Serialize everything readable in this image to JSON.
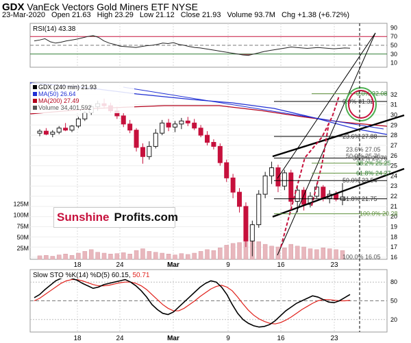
{
  "header": {
    "symbol": "GDX",
    "name": "VanEck Vectors Gold Miners ETF",
    "exchange": "NYSE",
    "date": "23-Mar-2020",
    "open_label": "Open",
    "open": "21.63",
    "high_label": "High",
    "high": "23.29",
    "low_label": "Low",
    "low": "21.12",
    "close_label": "Close",
    "close": "21.93",
    "volume_label": "Volume",
    "volume": "93.7M",
    "chg_label": "Chg",
    "chg": "+1.38 (+6.72%)"
  },
  "watermark": {
    "part1": "Sunshine",
    "part2": "Profits.com"
  },
  "colors": {
    "up": "#1a1a1a",
    "down": "#c6103c",
    "ma50": "#1f2fd4",
    "ma200": "#b3001b",
    "rsi": "#222222",
    "rsi_hi_fill": "#2e7d32",
    "rsi_lo_fill": "#8b1a2b",
    "sto_k": "#000000",
    "sto_d": "#e0201a",
    "volume": "#e8b7bd",
    "fib": "#5c8f3a",
    "circle": "#c6103c",
    "circle_green": "#4caf50"
  },
  "chart_data": [
    {
      "type": "line",
      "name": "rsi_panel",
      "label": "RSI(14) 43.38",
      "yticks": [
        90,
        70,
        50,
        30,
        10
      ],
      "ylim": [
        0,
        100
      ],
      "values": [
        60,
        62,
        65,
        58,
        55,
        57,
        60,
        62,
        64,
        67,
        70,
        72,
        68,
        60,
        55,
        52,
        48,
        47,
        46,
        45,
        47,
        49,
        50,
        52,
        55,
        54,
        56,
        52,
        50,
        47,
        45,
        44,
        42,
        40,
        38,
        36,
        34,
        32,
        30,
        28,
        27,
        30,
        33,
        36,
        38,
        40,
        42,
        44,
        46,
        45,
        44,
        43,
        44,
        45,
        44,
        43,
        42,
        43,
        44,
        43.38
      ],
      "reference_lines": [
        70,
        50,
        30
      ]
    },
    {
      "type": "candlestick",
      "name": "price_panel",
      "legend": [
        {
          "name": "GDX (240 min)",
          "value": "21.93"
        },
        {
          "name": "MA(50)",
          "value": "26.64"
        },
        {
          "name": "MA(200)",
          "value": "27.49"
        },
        {
          "name": "Volume",
          "value": "34,401,592"
        }
      ],
      "ylim": [
        15.8,
        33.2
      ],
      "yticks": [
        32,
        31,
        30,
        29,
        28,
        27,
        26,
        25,
        24,
        23,
        22,
        21,
        20,
        19,
        18,
        17,
        16
      ],
      "volume_ticks": [
        "125M",
        "100M",
        "75M",
        "50M",
        "25M"
      ],
      "volume_max_M": 140,
      "x_ticks": [
        "18",
        "24",
        "Mar",
        "9",
        "16",
        "23"
      ],
      "annotations": [
        "0.0% 31.32",
        "23.6% 27.88",
        "38.2% 25.76",
        "50.0% 23.54",
        "61.8% 21.75",
        "100.0% 20.28",
        "0.0% 32.08",
        "38.2% 25.25",
        "61.8% 24.27",
        "100.0% 16.05",
        "23.6% 27.05",
        "50.0% 25.76"
      ],
      "candles": [
        {
          "o": 28.2,
          "h": 28.6,
          "l": 27.9,
          "c": 28.4
        },
        {
          "o": 28.4,
          "h": 28.7,
          "l": 28.0,
          "c": 28.1
        },
        {
          "o": 28.1,
          "h": 28.5,
          "l": 27.8,
          "c": 28.3
        },
        {
          "o": 28.3,
          "h": 28.9,
          "l": 28.1,
          "c": 28.7
        },
        {
          "o": 28.7,
          "h": 29.2,
          "l": 28.4,
          "c": 28.5
        },
        {
          "o": 28.5,
          "h": 29.0,
          "l": 28.3,
          "c": 28.9
        },
        {
          "o": 28.9,
          "h": 29.8,
          "l": 28.7,
          "c": 29.6
        },
        {
          "o": 29.6,
          "h": 30.4,
          "l": 29.4,
          "c": 30.2
        },
        {
          "o": 30.2,
          "h": 31.0,
          "l": 30.0,
          "c": 30.8
        },
        {
          "o": 30.8,
          "h": 31.4,
          "l": 30.4,
          "c": 31.1
        },
        {
          "o": 31.1,
          "h": 31.6,
          "l": 30.6,
          "c": 30.9
        },
        {
          "o": 30.9,
          "h": 31.2,
          "l": 30.2,
          "c": 30.4
        },
        {
          "o": 30.4,
          "h": 30.8,
          "l": 29.6,
          "c": 29.9
        },
        {
          "o": 29.9,
          "h": 30.2,
          "l": 28.8,
          "c": 29.1
        },
        {
          "o": 29.1,
          "h": 29.5,
          "l": 28.2,
          "c": 28.5
        },
        {
          "o": 28.5,
          "h": 28.7,
          "l": 26.4,
          "c": 26.8
        },
        {
          "o": 26.8,
          "h": 27.2,
          "l": 25.2,
          "c": 25.9
        },
        {
          "o": 25.9,
          "h": 27.4,
          "l": 25.6,
          "c": 26.9
        },
        {
          "o": 26.9,
          "h": 28.6,
          "l": 26.7,
          "c": 28.2
        },
        {
          "o": 28.2,
          "h": 29.5,
          "l": 28.0,
          "c": 29.2
        },
        {
          "o": 29.2,
          "h": 29.6,
          "l": 28.4,
          "c": 28.8
        },
        {
          "o": 28.8,
          "h": 29.4,
          "l": 28.3,
          "c": 29.1
        },
        {
          "o": 29.1,
          "h": 29.7,
          "l": 28.6,
          "c": 29.4
        },
        {
          "o": 29.4,
          "h": 29.8,
          "l": 28.9,
          "c": 29.2
        },
        {
          "o": 29.2,
          "h": 29.6,
          "l": 28.5,
          "c": 28.7
        },
        {
          "o": 28.7,
          "h": 29.0,
          "l": 27.8,
          "c": 28.0
        },
        {
          "o": 28.0,
          "h": 28.4,
          "l": 27.0,
          "c": 27.3
        },
        {
          "o": 27.3,
          "h": 27.6,
          "l": 26.6,
          "c": 26.9
        },
        {
          "o": 26.9,
          "h": 27.2,
          "l": 25.0,
          "c": 25.3
        },
        {
          "o": 25.3,
          "h": 25.6,
          "l": 23.4,
          "c": 23.8
        },
        {
          "o": 23.8,
          "h": 24.2,
          "l": 21.8,
          "c": 22.4
        },
        {
          "o": 22.4,
          "h": 22.8,
          "l": 20.4,
          "c": 21.0
        },
        {
          "o": 21.0,
          "h": 21.4,
          "l": 17.0,
          "c": 17.6
        },
        {
          "o": 17.6,
          "h": 19.6,
          "l": 16.1,
          "c": 19.2
        },
        {
          "o": 19.2,
          "h": 22.6,
          "l": 18.9,
          "c": 22.2
        },
        {
          "o": 22.2,
          "h": 24.4,
          "l": 21.8,
          "c": 24.0
        },
        {
          "o": 24.0,
          "h": 25.4,
          "l": 23.2,
          "c": 24.8
        },
        {
          "o": 24.8,
          "h": 25.1,
          "l": 22.4,
          "c": 23.0
        },
        {
          "o": 23.0,
          "h": 24.6,
          "l": 22.6,
          "c": 24.3
        },
        {
          "o": 24.3,
          "h": 24.6,
          "l": 21.0,
          "c": 21.5
        },
        {
          "o": 21.5,
          "h": 23.0,
          "l": 20.4,
          "c": 22.6
        },
        {
          "o": 22.6,
          "h": 22.9,
          "l": 20.6,
          "c": 21.2
        },
        {
          "o": 21.2,
          "h": 22.4,
          "l": 20.9,
          "c": 22.0
        },
        {
          "o": 22.0,
          "h": 23.3,
          "l": 21.8,
          "c": 22.9
        },
        {
          "o": 22.9,
          "h": 23.1,
          "l": 21.5,
          "c": 21.8
        },
        {
          "o": 21.8,
          "h": 22.6,
          "l": 21.3,
          "c": 22.2
        },
        {
          "o": 22.2,
          "h": 22.5,
          "l": 21.5,
          "c": 21.7
        },
        {
          "o": 21.63,
          "h": 23.29,
          "l": 21.12,
          "c": 21.93
        }
      ]
    },
    {
      "type": "line",
      "name": "stochastic_panel",
      "label_prefix": "Slow STO %K(14) %D(5) ",
      "k_value": "60.15",
      "d_value": "50.71",
      "yticks": [
        80,
        50,
        20
      ],
      "ylim": [
        0,
        100
      ],
      "x_ticks": [
        "18",
        "24",
        "Mar",
        "9",
        "16",
        "23"
      ],
      "k": [
        55,
        60,
        68,
        75,
        82,
        86,
        88,
        86,
        83,
        78,
        74,
        70,
        72,
        76,
        78,
        80,
        82,
        84,
        80,
        74,
        66,
        56,
        44,
        36,
        30,
        28,
        32,
        40,
        48,
        56,
        64,
        72,
        78,
        82,
        80,
        72,
        60,
        44,
        30,
        20,
        14,
        10,
        8,
        9,
        12,
        18,
        26,
        34,
        40,
        46,
        50,
        54,
        58,
        56,
        52,
        48,
        47,
        50,
        55,
        60.15
      ],
      "d": [
        50,
        54,
        60,
        66,
        72,
        78,
        82,
        84,
        84,
        82,
        79,
        76,
        74,
        74,
        75,
        77,
        79,
        80,
        80,
        78,
        74,
        68,
        60,
        52,
        44,
        38,
        34,
        34,
        38,
        44,
        50,
        57,
        63,
        69,
        73,
        75,
        72,
        66,
        56,
        45,
        35,
        27,
        21,
        17,
        14,
        13,
        15,
        19,
        24,
        30,
        36,
        41,
        46,
        50,
        52,
        52,
        51,
        50,
        50,
        50.71
      ]
    }
  ]
}
